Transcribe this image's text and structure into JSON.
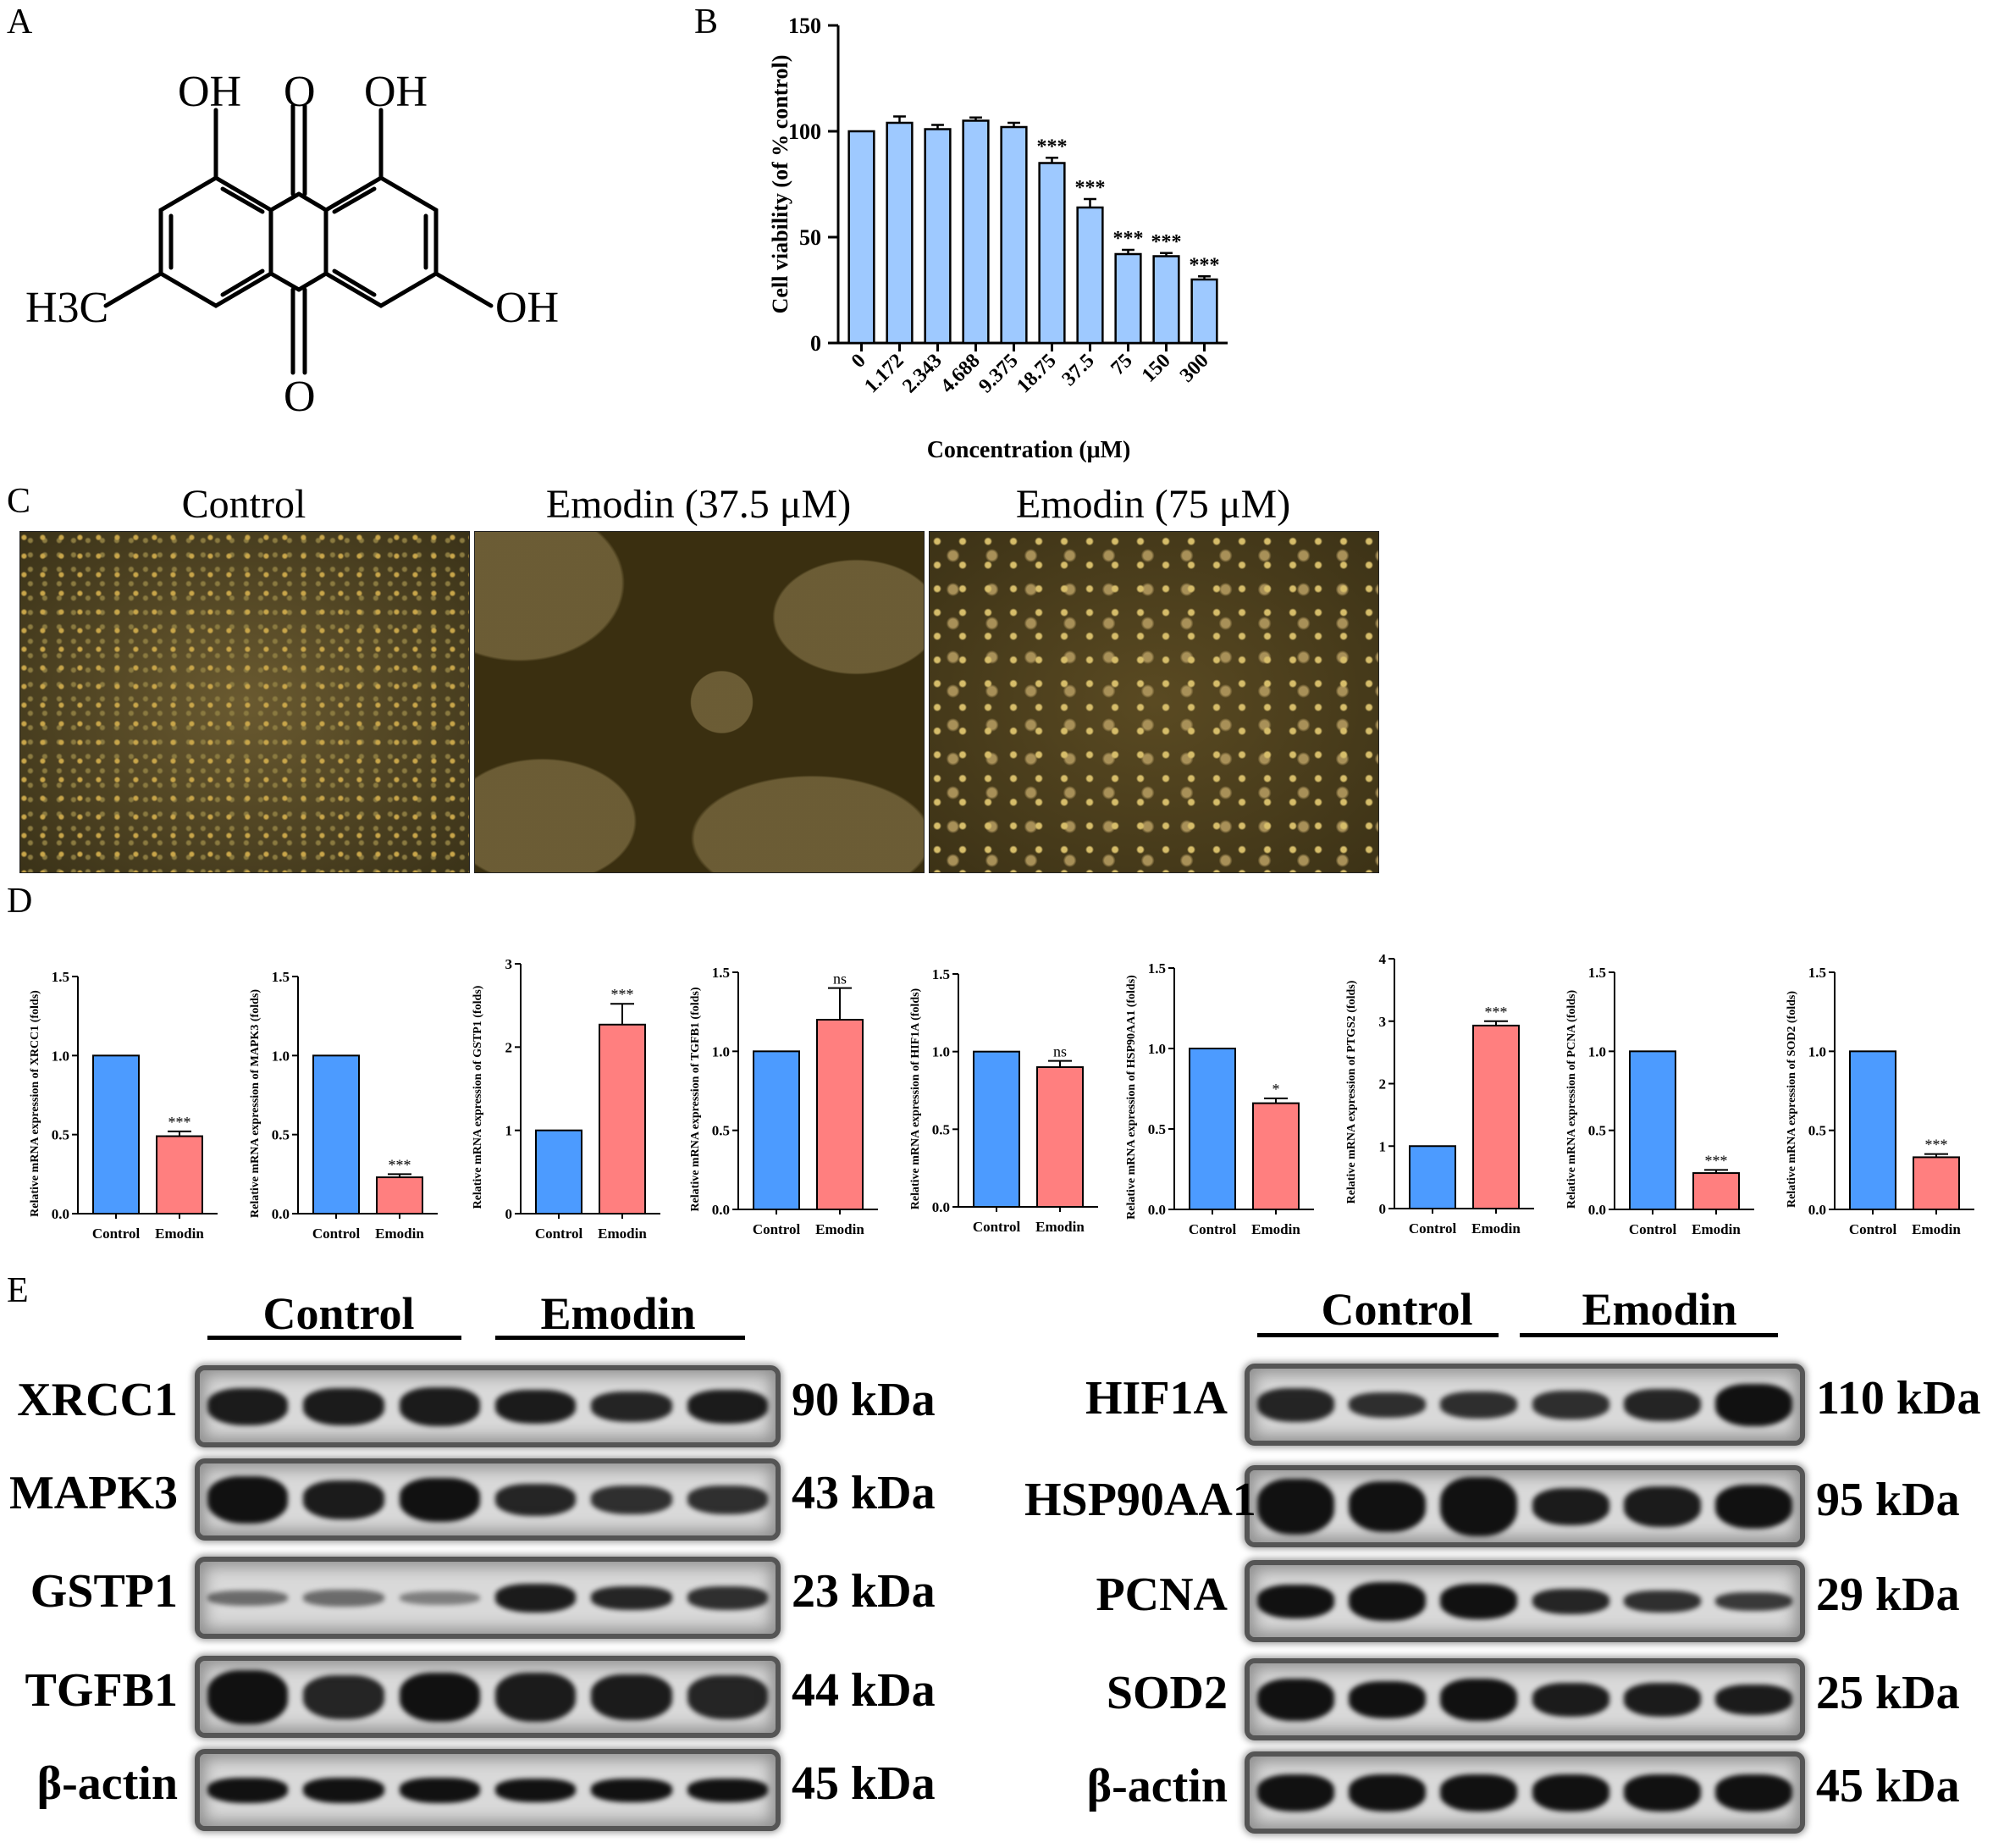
{
  "panels": {
    "A": "A",
    "B": "B",
    "C": "C",
    "D": "D",
    "E": "E"
  },
  "structure": {
    "oh_top_left": "OH",
    "carbonyl_top": "O",
    "oh_top_right": "OH",
    "oh_right": "OH",
    "carbonyl_bottom": "O",
    "methyl": "H3C"
  },
  "micrographs": {
    "titles": [
      "Control",
      "Emodin (37.5 μM)",
      "Emodin (75 μM)"
    ]
  },
  "chart_data": [
    {
      "type": "bar",
      "id": "viability",
      "categories": [
        "0",
        "1.172",
        "2.343",
        "4.688",
        "9.375",
        "18.75",
        "37.5",
        "75",
        "150",
        "300"
      ],
      "values": [
        100,
        104,
        101,
        105,
        102,
        85,
        64,
        42,
        41,
        30
      ],
      "errors": [
        0,
        3,
        2,
        1.5,
        2,
        2.5,
        4,
        2,
        1.5,
        1.5
      ],
      "annotations": [
        "",
        "",
        "",
        "",
        "",
        "***",
        "***",
        "***",
        "***",
        "***"
      ],
      "xlabel": "Concentration (μM)",
      "ylabel": "Cell viability (of % control)",
      "ylim": [
        0,
        150
      ],
      "yticks": [
        "0",
        "50",
        "100",
        "150"
      ],
      "color": "#9ec9ff"
    },
    {
      "type": "bar",
      "id": "XRCC1",
      "categories": [
        "Control",
        "Emodin"
      ],
      "values": [
        1.0,
        0.49
      ],
      "errors": [
        0,
        0.03
      ],
      "annotations": [
        "",
        "***"
      ],
      "ylabel": "Relative mRNA expression of  XRCC1 (folds)",
      "ylim": [
        0,
        1.5
      ],
      "yticks": [
        "0.0",
        "0.5",
        "1.0",
        "1.5"
      ],
      "colors": [
        "#4c9bff",
        "#ff7f7f"
      ]
    },
    {
      "type": "bar",
      "id": "MAPK3",
      "categories": [
        "Control",
        "Emodin"
      ],
      "values": [
        1.0,
        0.23
      ],
      "errors": [
        0,
        0.02
      ],
      "annotations": [
        "",
        "***"
      ],
      "ylabel": "Relative mRNA expression of  MAPK3 (folds)",
      "ylim": [
        0,
        1.5
      ],
      "yticks": [
        "0.0",
        "0.5",
        "1.0",
        "1.5"
      ],
      "colors": [
        "#4c9bff",
        "#ff7f7f"
      ]
    },
    {
      "type": "bar",
      "id": "GSTP1",
      "categories": [
        "Control",
        "Emodin"
      ],
      "values": [
        1.0,
        2.27
      ],
      "errors": [
        0,
        0.25
      ],
      "annotations": [
        "",
        "***"
      ],
      "ylabel": "Relative mRNA expression of  GSTP1 (folds)",
      "ylim": [
        0,
        3
      ],
      "yticks": [
        "0",
        "1",
        "2",
        "3"
      ],
      "colors": [
        "#4c9bff",
        "#ff7f7f"
      ]
    },
    {
      "type": "bar",
      "id": "TGFB1",
      "categories": [
        "Control",
        "Emodin"
      ],
      "values": [
        1.0,
        1.2
      ],
      "errors": [
        0,
        0.2
      ],
      "annotations": [
        "",
        "ns"
      ],
      "ylabel": "Relative mRNA expression of  TGFB1 (folds)",
      "ylim": [
        0,
        1.5
      ],
      "yticks": [
        "0.0",
        "0.5",
        "1.0",
        "1.5"
      ],
      "colors": [
        "#4c9bff",
        "#ff7f7f"
      ]
    },
    {
      "type": "bar",
      "id": "HIF1A",
      "categories": [
        "Control",
        "Emodin"
      ],
      "values": [
        1.0,
        0.9
      ],
      "errors": [
        0,
        0.04
      ],
      "annotations": [
        "",
        "ns"
      ],
      "ylabel": "Relative mRNA expression of  HIF1A (folds)",
      "ylim": [
        0,
        1.5
      ],
      "yticks": [
        "0.0",
        "0.5",
        "1.0",
        "1.5"
      ],
      "colors": [
        "#4c9bff",
        "#ff7f7f"
      ]
    },
    {
      "type": "bar",
      "id": "HSP90AA1",
      "categories": [
        "Control",
        "Emodin"
      ],
      "values": [
        1.0,
        0.66
      ],
      "errors": [
        0,
        0.03
      ],
      "annotations": [
        "",
        "*"
      ],
      "ylabel": "Relative mRNA expression of  HSP90AA1 (folds)",
      "ylim": [
        0,
        1.5
      ],
      "yticks": [
        "0.0",
        "0.5",
        "1.0",
        "1.5"
      ],
      "colors": [
        "#4c9bff",
        "#ff7f7f"
      ]
    },
    {
      "type": "bar",
      "id": "PTGS2",
      "categories": [
        "Control",
        "Emodin"
      ],
      "values": [
        1.0,
        2.93
      ],
      "errors": [
        0,
        0.07
      ],
      "annotations": [
        "",
        "***"
      ],
      "ylabel": "Relative mRNA expression of  PTGS2 (folds)",
      "ylim": [
        0,
        4
      ],
      "yticks": [
        "0",
        "1",
        "2",
        "3",
        "4"
      ],
      "colors": [
        "#4c9bff",
        "#ff7f7f"
      ]
    },
    {
      "type": "bar",
      "id": "PCNA",
      "categories": [
        "Control",
        "Emodin"
      ],
      "values": [
        1.0,
        0.23
      ],
      "errors": [
        0,
        0.02
      ],
      "annotations": [
        "",
        "***"
      ],
      "ylabel": "Relative mRNA expression of  PCNA (folds)",
      "ylim": [
        0,
        1.5
      ],
      "yticks": [
        "0.0",
        "0.5",
        "1.0",
        "1.5"
      ],
      "colors": [
        "#4c9bff",
        "#ff7f7f"
      ]
    },
    {
      "type": "bar",
      "id": "SOD2",
      "categories": [
        "Control",
        "Emodin"
      ],
      "values": [
        1.0,
        0.33
      ],
      "errors": [
        0,
        0.02
      ],
      "annotations": [
        "",
        "***"
      ],
      "ylabel": "Relative mRNA expression of  SOD2 (folds)",
      "ylim": [
        0,
        1.5
      ],
      "yticks": [
        "0.0",
        "0.5",
        "1.0",
        "1.5"
      ],
      "colors": [
        "#4c9bff",
        "#ff7f7f"
      ]
    }
  ],
  "western": {
    "left": {
      "groups": [
        "Control",
        "Emodin"
      ],
      "rows": [
        {
          "label": "XRCC1",
          "kda": "90 kDa"
        },
        {
          "label": "MAPK3",
          "kda": "43 kDa"
        },
        {
          "label": "GSTP1",
          "kda": "23 kDa"
        },
        {
          "label": "TGFB1",
          "kda": "44 kDa"
        },
        {
          "label": "β-actin",
          "kda": "45 kDa"
        }
      ]
    },
    "right": {
      "groups": [
        "Control",
        "Emodin"
      ],
      "rows": [
        {
          "label": "HIF1A",
          "kda": "110 kDa"
        },
        {
          "label": "HSP90AA1",
          "kda": "95 kDa"
        },
        {
          "label": "PCNA",
          "kda": "29 kDa"
        },
        {
          "label": "SOD2",
          "kda": "25 kDa"
        },
        {
          "label": "β-actin",
          "kda": "45 kDa"
        }
      ]
    }
  }
}
